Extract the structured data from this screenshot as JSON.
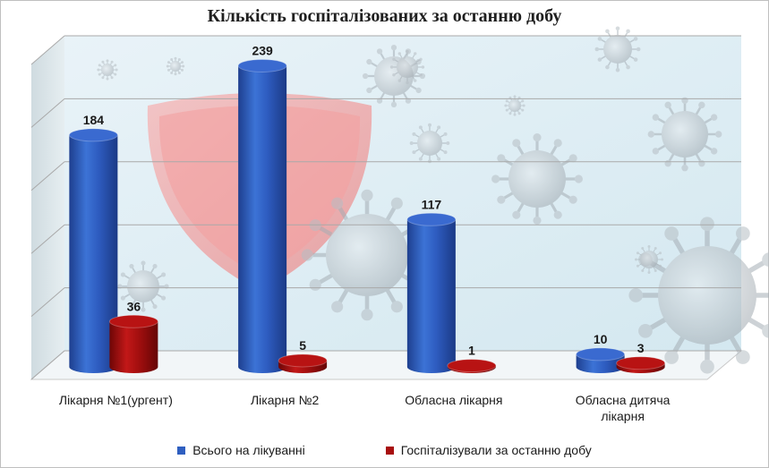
{
  "chart_data": {
    "type": "bar",
    "title": "Кількість госпіталізованих за останню добу",
    "categories": [
      "Лікарня №1(ургент)",
      "Лікарня №2",
      "Обласна лікарня",
      "Обласна дитяча лікарня"
    ],
    "series": [
      {
        "name": "Всього на лікуванні",
        "values": [
          184,
          239,
          117,
          10
        ],
        "color": "#2f5fc0"
      },
      {
        "name": "Госпіталізували за останню добу",
        "values": [
          36,
          5,
          1,
          3
        ],
        "color": "#a80f0f"
      }
    ],
    "ylim": [
      0,
      250
    ],
    "grid": true,
    "legend": "bottom",
    "style": "3d-cylinder"
  }
}
